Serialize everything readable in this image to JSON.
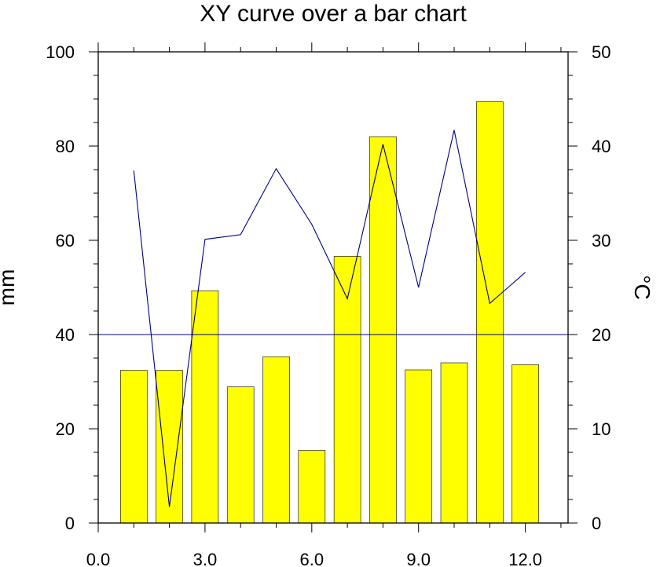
{
  "chart_data": {
    "type": "bar",
    "title": "XY curve over a bar chart",
    "xlim": [
      0,
      13.2
    ],
    "x_ticks": [
      0,
      3,
      6,
      9,
      12
    ],
    "x_tick_labels": [
      "0.0",
      "3.0",
      "6.0",
      "9.0",
      "12.0"
    ],
    "left_axis": {
      "label": "mm",
      "ylim": [
        0,
        100
      ],
      "ticks": [
        0,
        20,
        40,
        60,
        80,
        100
      ],
      "tick_labels": [
        "0",
        "20",
        "40",
        "60",
        "80",
        "100"
      ]
    },
    "right_axis": {
      "label": "°C",
      "ylim": [
        0,
        50
      ],
      "ticks": [
        0,
        10,
        20,
        30,
        40,
        50
      ],
      "tick_labels": [
        "0",
        "10",
        "20",
        "30",
        "40",
        "50"
      ]
    },
    "bars": {
      "axis": "left",
      "color": "#ffff00",
      "x": [
        1,
        2,
        3,
        4,
        5,
        6,
        7,
        8,
        9,
        10,
        11,
        12
      ],
      "values": [
        32.4,
        32.4,
        49.3,
        28.9,
        35.3,
        15.4,
        56.6,
        82.0,
        32.5,
        34.0,
        89.4,
        33.6
      ]
    },
    "line": {
      "axis": "right",
      "color": "#000080",
      "x": [
        1,
        2,
        3,
        4,
        5,
        6,
        7,
        8,
        9,
        10,
        11,
        12
      ],
      "values": [
        37.4,
        1.7,
        30.1,
        30.6,
        37.6,
        31.7,
        23.8,
        40.2,
        25.0,
        41.7,
        23.3,
        26.6
      ]
    },
    "reference_line": {
      "axis": "left",
      "value": 40,
      "color": "#000080"
    }
  }
}
